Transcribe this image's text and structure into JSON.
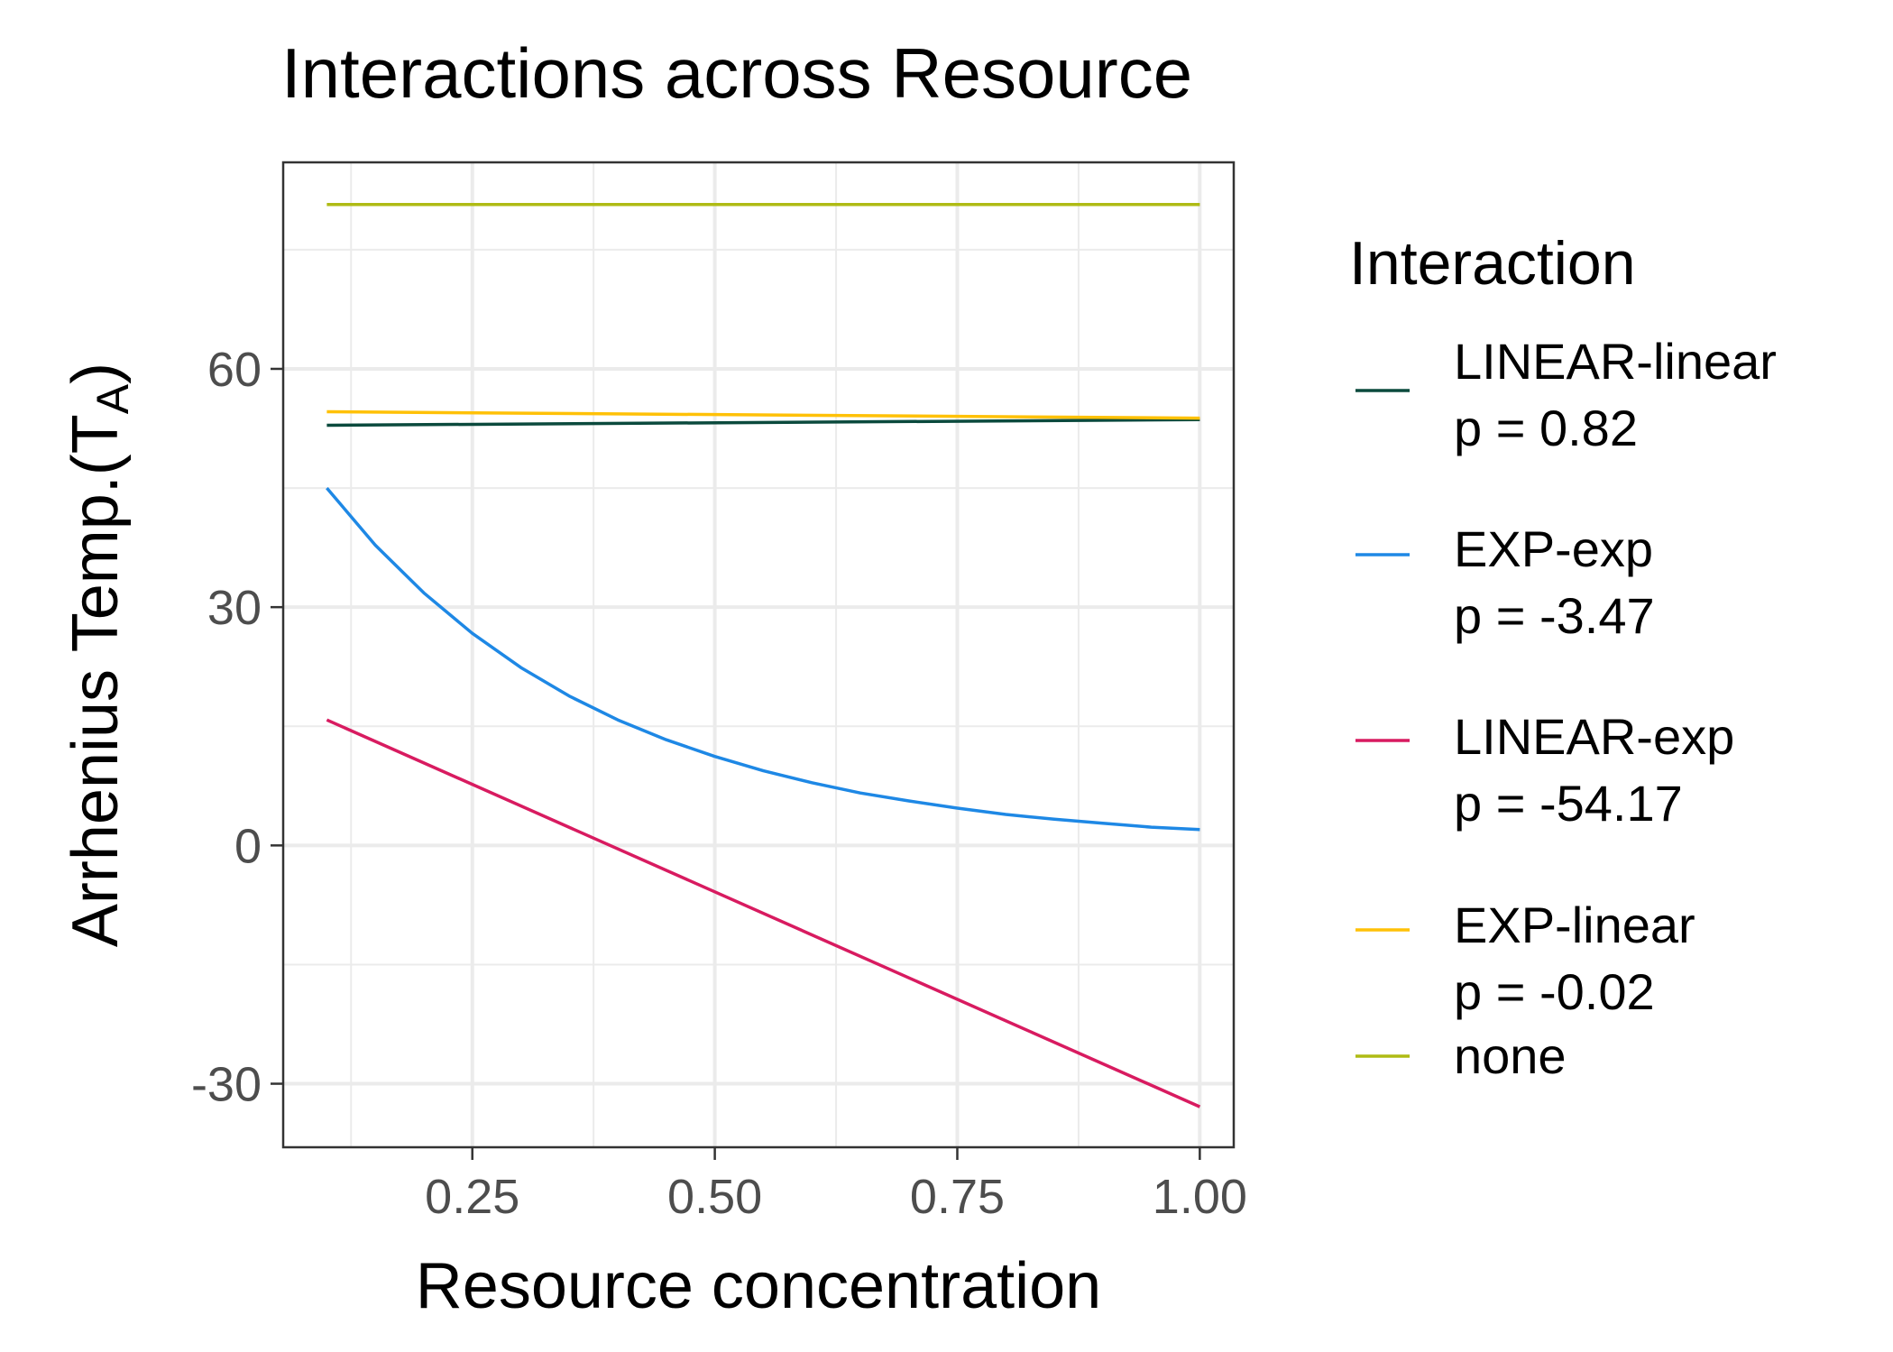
{
  "chart_data": {
    "type": "line",
    "title": "Interactions across Resource",
    "xlabel": "Resource concentration",
    "ylabel": "Arrhenius Temp.(T",
    "ylabel_sub": "A",
    "ylabel_close": ")",
    "xlim": [
      0.055,
      1.035
    ],
    "ylim": [
      -38,
      86
    ],
    "x_ticks": [
      0.25,
      0.5,
      0.75,
      1.0
    ],
    "x_tick_labels": [
      "0.25",
      "0.50",
      "0.75",
      "1.00"
    ],
    "y_ticks": [
      -30,
      0,
      30,
      60
    ],
    "y_tick_labels": [
      "-30",
      "0",
      "30",
      "60"
    ],
    "grid": true,
    "legend": {
      "title": "Interaction",
      "position": "right",
      "entries": [
        {
          "line1": "LINEAR-linear",
          "line2": "p = 0.82"
        },
        {
          "line1": "EXP-exp",
          "line2": "p = -3.47"
        },
        {
          "line1": "LINEAR-exp",
          "line2": "p = -54.17"
        },
        {
          "line1": "EXP-linear",
          "line2": "p = -0.02"
        },
        {
          "line1": "none",
          "line2": ""
        }
      ]
    },
    "series": [
      {
        "name": "LINEAR-linear\np = 0.82",
        "color": "#0b4a3d",
        "x": [
          0.1,
          1.0
        ],
        "y": [
          52.9,
          53.6
        ]
      },
      {
        "name": "EXP-exp\np = -3.47",
        "color": "#1e88e5",
        "x": [
          0.1,
          0.15,
          0.2,
          0.25,
          0.3,
          0.35,
          0.4,
          0.45,
          0.5,
          0.55,
          0.6,
          0.65,
          0.7,
          0.75,
          0.8,
          0.85,
          0.9,
          0.95,
          1.0
        ],
        "y": [
          45.0,
          37.8,
          31.8,
          26.7,
          22.4,
          18.8,
          15.8,
          13.3,
          11.2,
          9.4,
          7.9,
          6.6,
          5.6,
          4.7,
          3.9,
          3.3,
          2.8,
          2.3,
          2.0
        ]
      },
      {
        "name": "LINEAR-exp\np = -54.17",
        "color": "#d81b60",
        "x": [
          0.1,
          1.0
        ],
        "y": [
          15.8,
          -32.9
        ]
      },
      {
        "name": "EXP-linear\np = -0.02",
        "color": "#ffc107",
        "x": [
          0.1,
          1.0
        ],
        "y": [
          54.6,
          53.8
        ]
      },
      {
        "name": "none",
        "color": "#afbb14",
        "x": [
          0.1,
          1.0
        ],
        "y": [
          80.7,
          80.7
        ]
      }
    ]
  }
}
